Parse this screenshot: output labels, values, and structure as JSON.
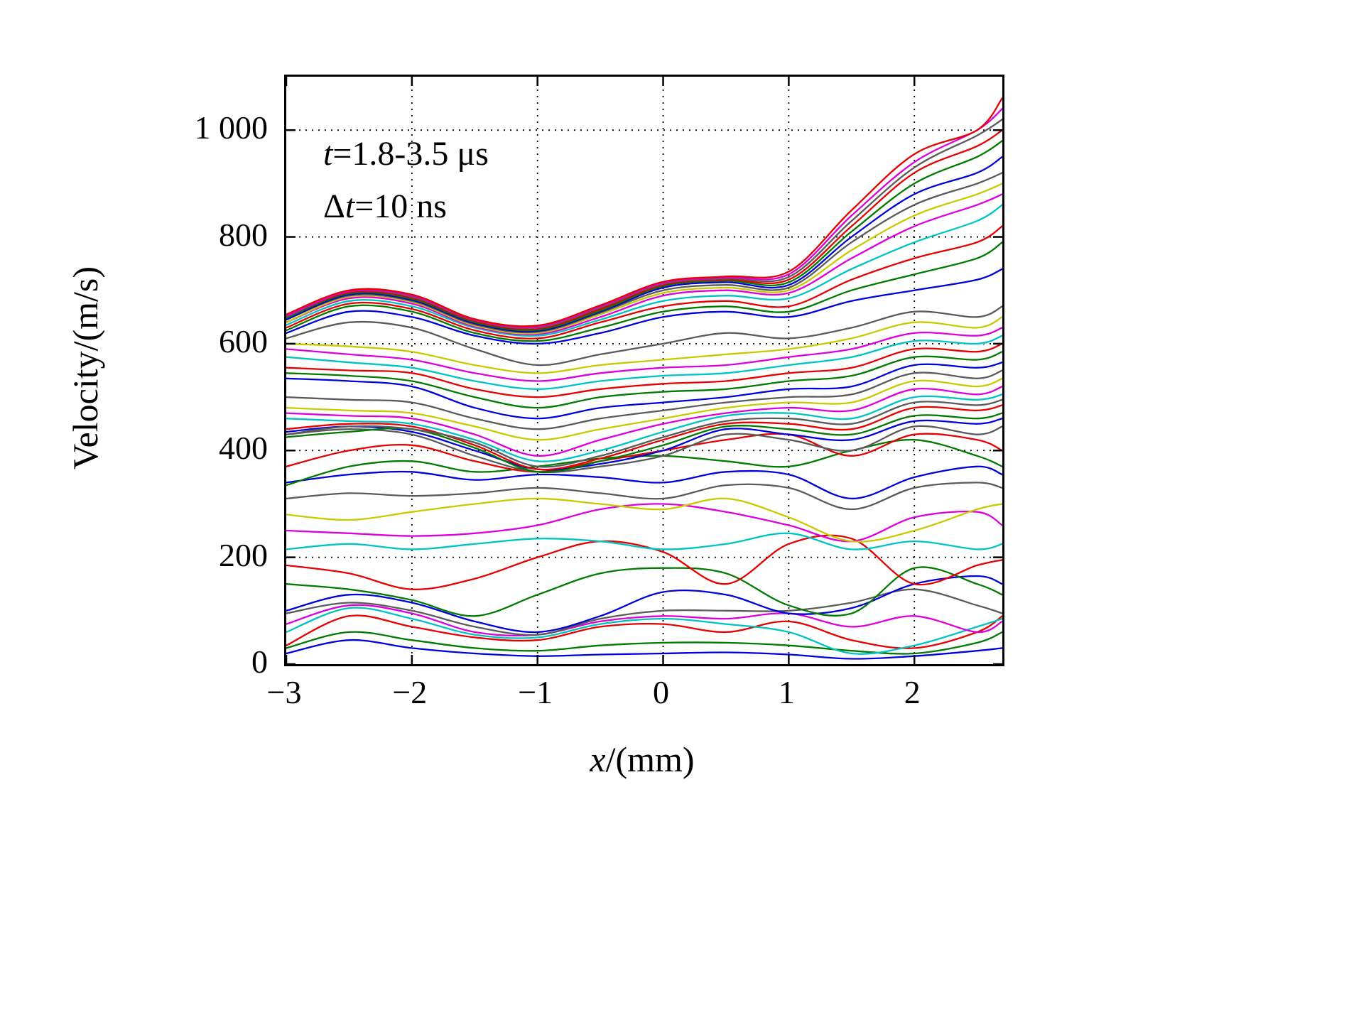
{
  "chart_data": {
    "type": "line",
    "title": "",
    "xlabel": "x/(mm)",
    "xlabel_var": "x",
    "xlabel_rest": "/(mm)",
    "ylabel": "Velocity/(m/s)",
    "xlim": [
      -3,
      2.7
    ],
    "ylim": [
      0,
      1100
    ],
    "xticks": [
      -3,
      -2,
      -1,
      0,
      1,
      2
    ],
    "xtick_labels": [
      "−3",
      "−2",
      "−1",
      "0",
      "1",
      "2"
    ],
    "yticks": [
      0,
      200,
      400,
      600,
      800,
      1000
    ],
    "ytick_labels": [
      "0",
      "200",
      "400",
      "600",
      "800",
      "1 000"
    ],
    "grid": "dotted",
    "legend": "none",
    "annotation": {
      "t1_var": "t",
      "t1_rest": "=1.8-3.5 μs",
      "t2_prefix": "Δ",
      "t2_var": "t",
      "t2_rest": "=10 ns",
      "full_text": "t=1.8-3.5 μs / Δt=10 ns"
    },
    "x": [
      -3,
      -2.5,
      -2,
      -1.5,
      -1,
      -0.5,
      0,
      0.5,
      1,
      1.5,
      2,
      2.5,
      2.7
    ],
    "series": [
      {
        "color": "#0000dd",
        "y": [
          20,
          45,
          30,
          20,
          15,
          18,
          20,
          22,
          18,
          10,
          15,
          25,
          30
        ]
      },
      {
        "color": "#007a00",
        "y": [
          30,
          60,
          45,
          30,
          25,
          35,
          40,
          40,
          35,
          25,
          20,
          40,
          60
        ]
      },
      {
        "color": "#e60000",
        "y": [
          35,
          90,
          70,
          50,
          45,
          70,
          75,
          60,
          80,
          45,
          30,
          60,
          90
        ]
      },
      {
        "color": "#00c3c3",
        "y": [
          60,
          105,
          85,
          55,
          50,
          75,
          85,
          75,
          60,
          20,
          35,
          70,
          85
        ]
      },
      {
        "color": "#dd00dd",
        "y": [
          75,
          110,
          95,
          60,
          55,
          80,
          90,
          85,
          95,
          70,
          90,
          60,
          80
        ]
      },
      {
        "color": "#5a5a5a",
        "y": [
          95,
          115,
          100,
          70,
          55,
          85,
          100,
          100,
          100,
          115,
          140,
          110,
          95
        ]
      },
      {
        "color": "#0000dd",
        "y": [
          100,
          130,
          115,
          80,
          60,
          90,
          135,
          130,
          95,
          105,
          150,
          165,
          150
        ]
      },
      {
        "color": "#007a00",
        "y": [
          150,
          140,
          120,
          90,
          130,
          170,
          180,
          170,
          110,
          95,
          180,
          150,
          130
        ]
      },
      {
        "color": "#e60000",
        "y": [
          185,
          170,
          140,
          160,
          200,
          230,
          210,
          150,
          225,
          235,
          150,
          185,
          195
        ]
      },
      {
        "color": "#00c3c3",
        "y": [
          215,
          225,
          215,
          225,
          235,
          230,
          215,
          225,
          245,
          215,
          230,
          215,
          225
        ]
      },
      {
        "color": "#dd00dd",
        "y": [
          250,
          245,
          240,
          245,
          260,
          290,
          300,
          285,
          260,
          230,
          275,
          285,
          260
        ]
      },
      {
        "color": "#c9c900",
        "y": [
          280,
          270,
          285,
          300,
          310,
          300,
          290,
          310,
          275,
          230,
          250,
          290,
          300
        ]
      },
      {
        "color": "#5a5a5a",
        "y": [
          310,
          320,
          315,
          320,
          330,
          320,
          310,
          335,
          330,
          290,
          330,
          340,
          330
        ]
      },
      {
        "color": "#0000dd",
        "y": [
          340,
          355,
          360,
          345,
          355,
          350,
          340,
          360,
          355,
          310,
          350,
          370,
          355
        ]
      },
      {
        "color": "#007a00",
        "y": [
          335,
          370,
          380,
          360,
          370,
          385,
          390,
          380,
          370,
          400,
          420,
          390,
          370
        ]
      },
      {
        "color": "#e60000",
        "y": [
          370,
          400,
          410,
          380,
          360,
          380,
          400,
          420,
          430,
          390,
          430,
          420,
          400
        ]
      },
      {
        "color": "#5a5a5a",
        "y": [
          430,
          440,
          430,
          390,
          360,
          370,
          390,
          430,
          420,
          400,
          445,
          430,
          445
        ]
      },
      {
        "color": "#0000dd",
        "y": [
          435,
          445,
          435,
          400,
          365,
          375,
          400,
          440,
          430,
          420,
          455,
          450,
          460
        ]
      },
      {
        "color": "#007a00",
        "y": [
          425,
          435,
          440,
          405,
          360,
          380,
          410,
          445,
          440,
          430,
          465,
          460,
          470
        ]
      },
      {
        "color": "#e60000",
        "y": [
          440,
          450,
          445,
          410,
          365,
          385,
          420,
          450,
          450,
          440,
          480,
          475,
          485
        ]
      },
      {
        "color": "#5a5a5a",
        "y": [
          430,
          445,
          440,
          415,
          370,
          390,
          425,
          455,
          460,
          450,
          490,
          485,
          495
        ]
      },
      {
        "color": "#00c3c3",
        "y": [
          460,
          455,
          450,
          420,
          380,
          400,
          435,
          465,
          470,
          460,
          500,
          495,
          505
        ]
      },
      {
        "color": "#dd00dd",
        "y": [
          470,
          465,
          460,
          430,
          390,
          420,
          450,
          470,
          480,
          475,
          515,
          505,
          520
        ]
      },
      {
        "color": "#c9c900",
        "y": [
          480,
          475,
          470,
          445,
          420,
          440,
          460,
          480,
          490,
          490,
          530,
          520,
          535
        ]
      },
      {
        "color": "#5a5a5a",
        "y": [
          500,
          495,
          490,
          460,
          440,
          460,
          475,
          490,
          500,
          505,
          545,
          535,
          550
        ]
      },
      {
        "color": "#0000dd",
        "y": [
          535,
          530,
          520,
          480,
          460,
          480,
          490,
          500,
          515,
          520,
          560,
          555,
          565
        ]
      },
      {
        "color": "#007a00",
        "y": [
          545,
          540,
          530,
          500,
          480,
          500,
          510,
          515,
          530,
          540,
          575,
          570,
          585
        ]
      },
      {
        "color": "#e60000",
        "y": [
          555,
          550,
          545,
          515,
          500,
          515,
          525,
          530,
          545,
          555,
          590,
          585,
          600
        ]
      },
      {
        "color": "#00c3c3",
        "y": [
          575,
          565,
          555,
          530,
          515,
          530,
          540,
          545,
          560,
          575,
          605,
          600,
          615
        ]
      },
      {
        "color": "#dd00dd",
        "y": [
          590,
          580,
          570,
          545,
          530,
          545,
          555,
          560,
          575,
          590,
          620,
          615,
          630
        ]
      },
      {
        "color": "#c9c900",
        "y": [
          600,
          595,
          585,
          560,
          545,
          560,
          570,
          580,
          590,
          610,
          640,
          630,
          650
        ]
      },
      {
        "color": "#5a5a5a",
        "y": [
          610,
          640,
          630,
          590,
          560,
          580,
          600,
          620,
          610,
          630,
          660,
          650,
          670
        ]
      },
      {
        "color": "#0000dd",
        "y": [
          620,
          660,
          650,
          615,
          600,
          620,
          650,
          660,
          650,
          680,
          700,
          720,
          740
        ]
      },
      {
        "color": "#007a00",
        "y": [
          625,
          670,
          660,
          620,
          605,
          630,
          660,
          670,
          660,
          700,
          730,
          760,
          790
        ]
      },
      {
        "color": "#e60000",
        "y": [
          630,
          675,
          665,
          625,
          610,
          640,
          670,
          680,
          670,
          720,
          760,
          790,
          820
        ]
      },
      {
        "color": "#00c3c3",
        "y": [
          635,
          680,
          670,
          630,
          615,
          645,
          680,
          690,
          685,
          740,
          790,
          830,
          860
        ]
      },
      {
        "color": "#dd00dd",
        "y": [
          640,
          685,
          675,
          632,
          618,
          650,
          690,
          700,
          695,
          760,
          820,
          860,
          880
        ]
      },
      {
        "color": "#c9c900",
        "y": [
          640,
          688,
          678,
          634,
          620,
          655,
          695,
          705,
          700,
          775,
          840,
          880,
          900
        ]
      },
      {
        "color": "#5a5a5a",
        "y": [
          645,
          690,
          680,
          636,
          622,
          658,
          700,
          710,
          705,
          790,
          860,
          900,
          920
        ]
      },
      {
        "color": "#0000dd",
        "y": [
          645,
          692,
          682,
          638,
          624,
          660,
          705,
          715,
          710,
          800,
          880,
          920,
          950
        ]
      },
      {
        "color": "#007a00",
        "y": [
          648,
          694,
          684,
          640,
          626,
          662,
          708,
          718,
          715,
          810,
          900,
          950,
          980
        ]
      },
      {
        "color": "#e60000",
        "y": [
          650,
          696,
          686,
          642,
          628,
          665,
          710,
          720,
          720,
          820,
          920,
          970,
          1000
        ]
      },
      {
        "color": "#5a5a5a",
        "y": [
          650,
          698,
          688,
          644,
          630,
          668,
          712,
          722,
          725,
          830,
          930,
          990,
          1020
        ]
      },
      {
        "color": "#dd00dd",
        "y": [
          652,
          698,
          690,
          645,
          632,
          670,
          714,
          724,
          730,
          840,
          940,
          1000,
          1040
        ]
      },
      {
        "color": "#e60000",
        "y": [
          655,
          700,
          692,
          646,
          634,
          672,
          716,
          726,
          735,
          850,
          955,
          1000,
          1060
        ]
      }
    ]
  }
}
